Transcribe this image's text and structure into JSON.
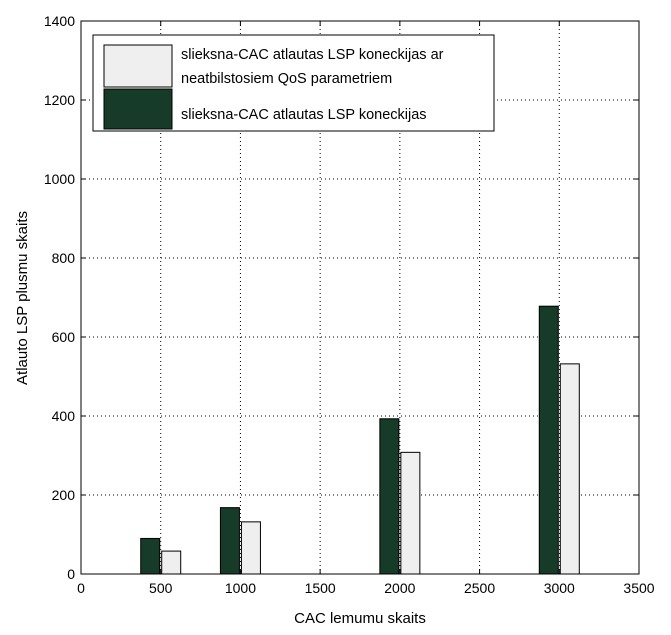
{
  "chart_data": {
    "type": "bar",
    "title": "",
    "xlabel": "CAC lemumu skaits",
    "ylabel": "Atlauto LSP plusmu skaits",
    "xlim": [
      0,
      3500
    ],
    "ylim": [
      0,
      1400
    ],
    "xticks": [
      "0",
      "500",
      "1000",
      "1500",
      "2000",
      "2500",
      "3000",
      "3500"
    ],
    "yticks": [
      "0",
      "200",
      "400",
      "600",
      "800",
      "1000",
      "1200",
      "1400"
    ],
    "grid": true,
    "legend_position": "top-left",
    "categories": [
      500,
      1000,
      2000,
      3000
    ],
    "series": [
      {
        "name": "slieksna-CAC atlautas LSP koneckijas",
        "color": "#173b29",
        "values": [
          90,
          168,
          393,
          678
        ]
      },
      {
        "name": "slieksna-CAC atlautas LSP koneckijas ar neatbilstosiem QoS parametriem",
        "color": "#efefef",
        "values": [
          58,
          132,
          308,
          532
        ]
      }
    ],
    "legend": [
      {
        "series": 1,
        "lines": [
          "slieksna-CAC atlautas LSP koneckijas ar",
          "neatbilstosiem QoS parametriem"
        ]
      },
      {
        "series": 0,
        "lines": [
          "slieksna-CAC atlautas LSP koneckijas"
        ]
      }
    ]
  }
}
